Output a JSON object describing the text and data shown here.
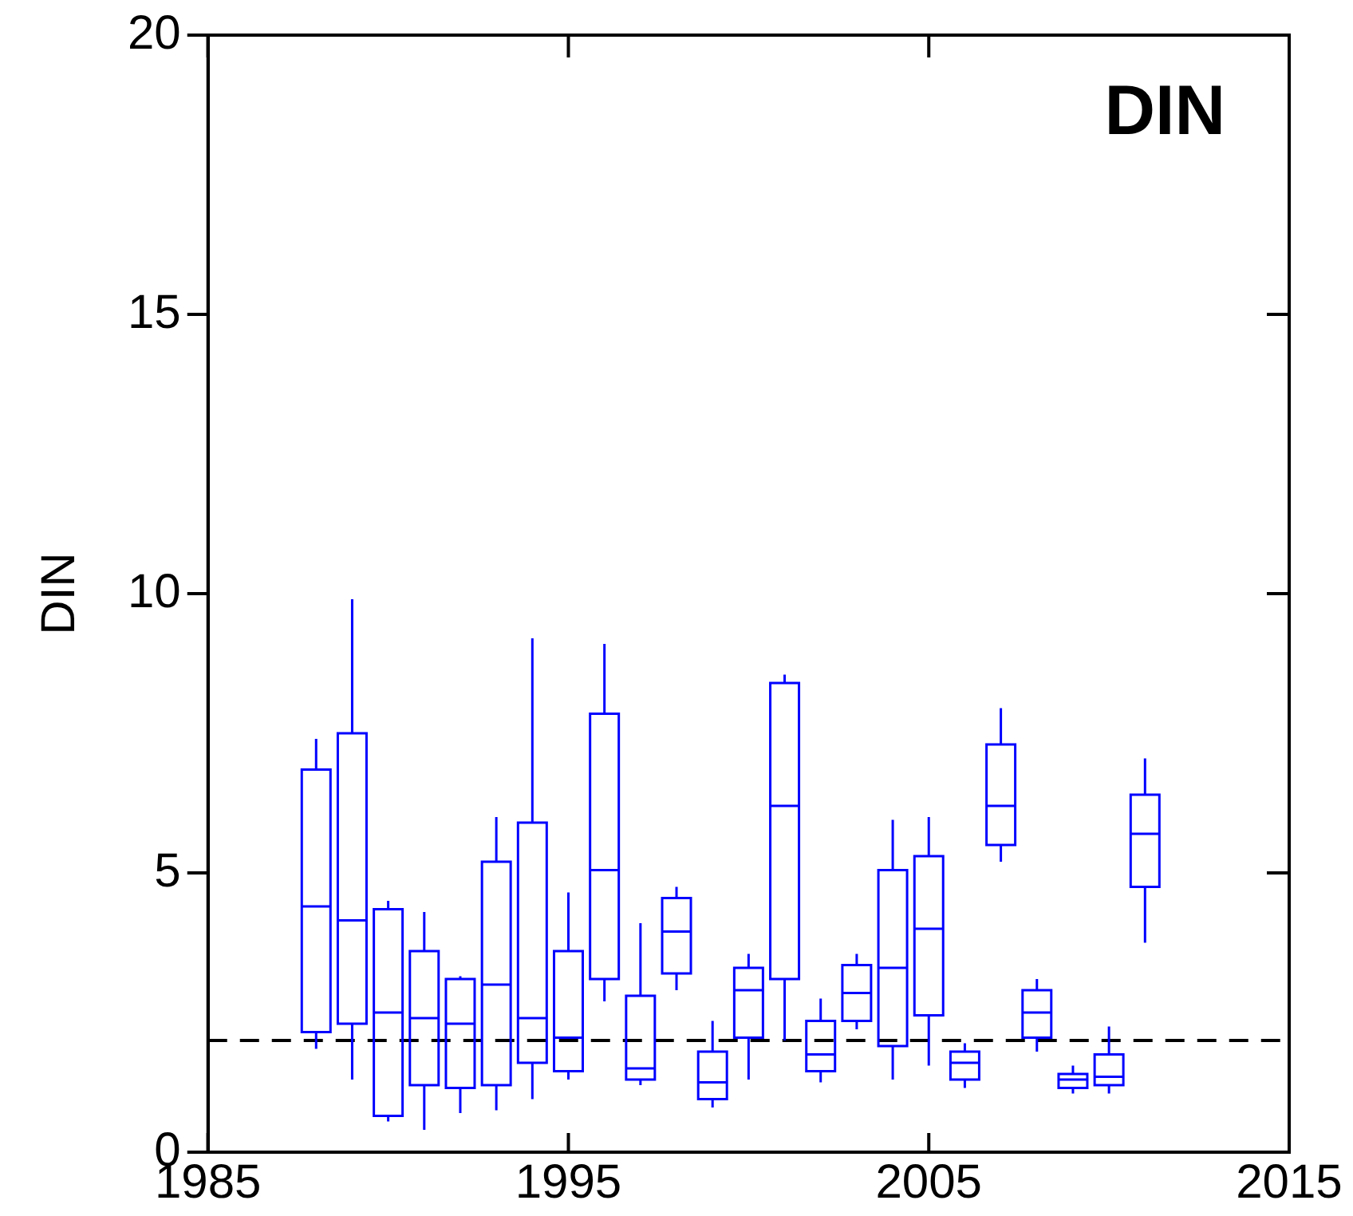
{
  "chart_data": {
    "type": "box",
    "ylabel": "DIN",
    "annotations": [
      "DIN"
    ],
    "xlim": [
      1985,
      2015
    ],
    "xticks": [
      1985,
      1995,
      2005,
      2015
    ],
    "ylim": [
      0,
      20
    ],
    "yticks": [
      0,
      5,
      10,
      15,
      20
    ],
    "grid": false,
    "ref_lines": [
      {
        "axis": "y",
        "value": 2,
        "color": "#000000",
        "line_style": "dashed"
      }
    ],
    "series": [
      {
        "color": "#0000ff",
        "x": [
          1988,
          1989,
          1990,
          1991,
          1992,
          1993,
          1994,
          1995,
          1996,
          1997,
          1998,
          1999,
          2000,
          2001,
          2002,
          2003,
          2004,
          2005,
          2006,
          2007,
          2008,
          2009,
          2010,
          2011
        ],
        "boxes": [
          {
            "low": 1.85,
            "q1": 2.15,
            "median": 4.4,
            "q3": 6.85,
            "high": 7.4
          },
          {
            "low": 1.3,
            "q1": 2.3,
            "median": 4.15,
            "q3": 7.5,
            "high": 9.9
          },
          {
            "low": 0.55,
            "q1": 0.65,
            "median": 2.5,
            "q3": 4.35,
            "high": 4.5
          },
          {
            "low": 0.4,
            "q1": 1.2,
            "median": 2.4,
            "q3": 3.6,
            "high": 4.3
          },
          {
            "low": 0.7,
            "q1": 1.15,
            "median": 2.3,
            "q3": 3.1,
            "high": 3.15
          },
          {
            "low": 0.75,
            "q1": 1.2,
            "median": 3.0,
            "q3": 5.2,
            "high": 6.0
          },
          {
            "low": 0.95,
            "q1": 1.6,
            "median": 2.4,
            "q3": 5.9,
            "high": 9.2
          },
          {
            "low": 1.3,
            "q1": 1.45,
            "median": 2.05,
            "q3": 3.6,
            "high": 4.65
          },
          {
            "low": 2.7,
            "q1": 3.1,
            "median": 5.05,
            "q3": 7.85,
            "high": 9.1
          },
          {
            "low": 1.2,
            "q1": 1.3,
            "median": 1.5,
            "q3": 2.8,
            "high": 4.1
          },
          {
            "low": 2.9,
            "q1": 3.2,
            "median": 3.95,
            "q3": 4.55,
            "high": 4.75
          },
          {
            "low": 0.8,
            "q1": 0.95,
            "median": 1.25,
            "q3": 1.8,
            "high": 2.35
          },
          {
            "low": 1.3,
            "q1": 2.05,
            "median": 2.9,
            "q3": 3.3,
            "high": 3.55
          },
          {
            "low": 2.0,
            "q1": 3.1,
            "median": 6.2,
            "q3": 8.4,
            "high": 8.55
          },
          {
            "low": 1.25,
            "q1": 1.45,
            "median": 1.75,
            "q3": 2.35,
            "high": 2.75
          },
          {
            "low": 2.2,
            "q1": 2.35,
            "median": 2.85,
            "q3": 3.35,
            "high": 3.55
          },
          {
            "low": 1.3,
            "q1": 1.9,
            "median": 3.3,
            "q3": 5.05,
            "high": 5.95
          },
          {
            "low": 1.55,
            "q1": 2.45,
            "median": 4.0,
            "q3": 5.3,
            "high": 6.0
          },
          {
            "low": 1.15,
            "q1": 1.3,
            "median": 1.6,
            "q3": 1.8,
            "high": 1.95
          },
          {
            "low": 5.2,
            "q1": 5.5,
            "median": 6.2,
            "q3": 7.3,
            "high": 7.95
          },
          {
            "low": 1.8,
            "q1": 2.05,
            "median": 2.5,
            "q3": 2.9,
            "high": 3.1
          },
          {
            "low": 1.05,
            "q1": 1.15,
            "median": 1.3,
            "q3": 1.4,
            "high": 1.55
          },
          {
            "low": 1.05,
            "q1": 1.2,
            "median": 1.35,
            "q3": 1.75,
            "high": 2.25
          },
          {
            "low": 3.75,
            "q1": 4.75,
            "median": 5.7,
            "q3": 6.4,
            "high": 7.05
          }
        ]
      }
    ]
  }
}
